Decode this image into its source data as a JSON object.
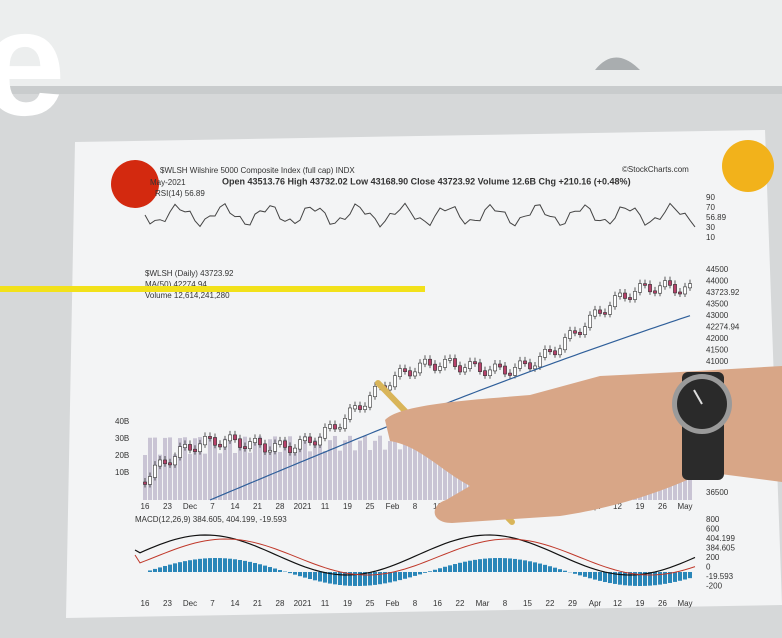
{
  "overlay_letter": "e",
  "chart_header": {
    "title": "$WLSH Wilshire 5000 Composite Index (full cap) INDX",
    "source": "©StockCharts.com",
    "date": "May-2021",
    "quote": "Open 43513.76 High 43732.02 Low 43168.90 Close 43723.92 Volume 12.6B Chg +210.16 (+0.48%)",
    "rsi": "RSI(14) 56.89"
  },
  "price_legend": [
    "$WLSH (Daily) 43723.92",
    "MA(50) 42274.94",
    "Volume 12,614,241,280"
  ],
  "macd_legend": "MACD(12,26,9) 384.605, 404.199, -19.593",
  "rsi_axis": [
    "90",
    "70",
    "56.89",
    "30",
    "10"
  ],
  "price_axis": [
    "44500",
    "44000",
    "43723.92",
    "43500",
    "43000",
    "42274.94",
    "42000",
    "41500",
    "41000"
  ],
  "volume_axis": [
    "40B",
    "30B",
    "20B",
    "10B"
  ],
  "lower_price_axis": "36500",
  "macd_axis": [
    "800",
    "600",
    "404.199",
    "384.605",
    "200",
    "0",
    "-19.593",
    "-200"
  ],
  "date_axis": [
    "16",
    "23",
    "Dec",
    "7",
    "14",
    "21",
    "28",
    "2021",
    "11",
    "19",
    "25",
    "Feb",
    "8",
    "16",
    "22",
    "Mar",
    "8",
    "15",
    "22",
    "29",
    "Apr",
    "12",
    "19",
    "26",
    "May"
  ]
}
